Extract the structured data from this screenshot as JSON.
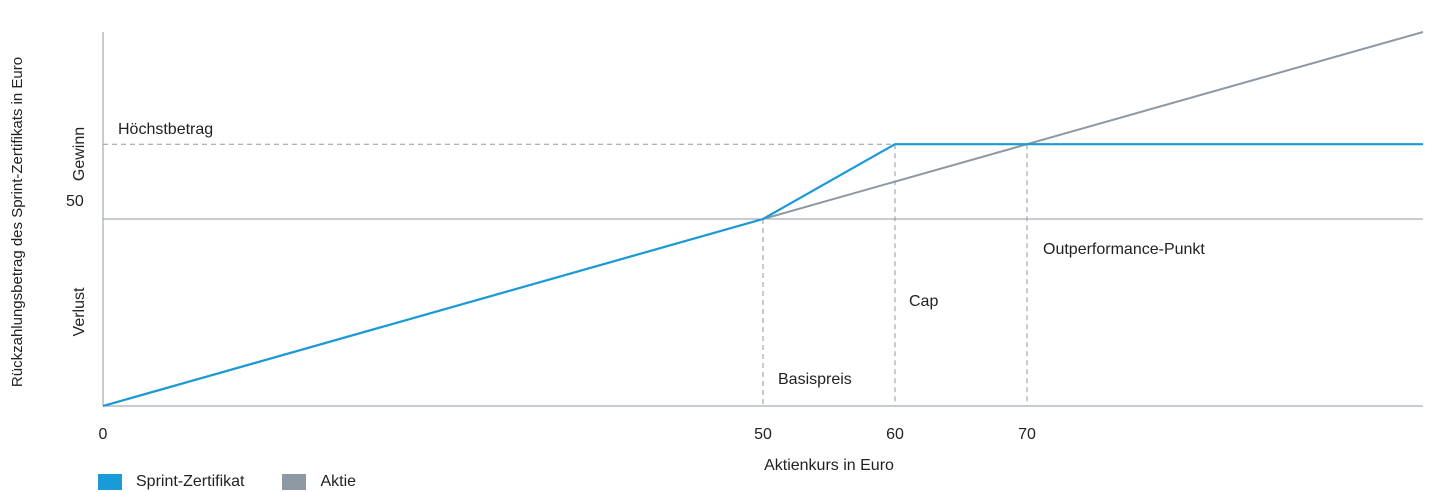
{
  "chart_data": {
    "type": "line",
    "xlabel": "Aktienkurs in Euro",
    "ylabel": "Rückzahlungsbetrag des Sprint-Zertifikats in Euro",
    "xlim": [
      0,
      100
    ],
    "ylim": [
      0,
      100
    ],
    "x_ticks": [
      "0",
      "50",
      "60",
      "70"
    ],
    "y_tick": "50",
    "y_region_labels": {
      "upper": "Gewinn",
      "lower": "Verlust"
    },
    "cap_level_label": "Höchstbetrag",
    "cap_level_value": 70,
    "series": [
      {
        "name": "Sprint-Zertifikat",
        "color": "#1a9ad6",
        "x": [
          0,
          50,
          60,
          100
        ],
        "y": [
          0,
          50,
          70,
          70
        ]
      },
      {
        "name": "Aktie",
        "color": "#8e99a3",
        "x": [
          0,
          100
        ],
        "y": [
          0,
          100
        ]
      }
    ],
    "annotations": [
      {
        "text": "Basispreis",
        "x": 50
      },
      {
        "text": "Cap",
        "x": 60
      },
      {
        "text": "Outperformance-Punkt",
        "x": 70
      }
    ]
  }
}
